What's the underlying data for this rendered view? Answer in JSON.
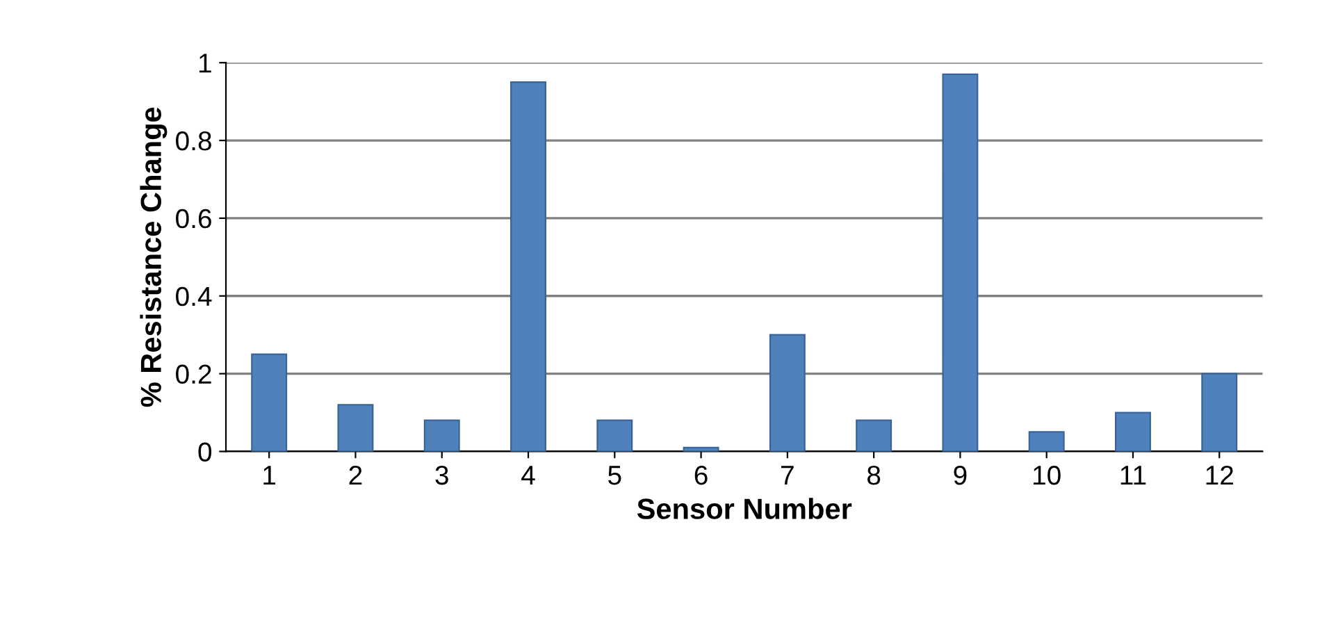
{
  "chart_data": {
    "type": "bar",
    "xlabel": "Sensor Number",
    "ylabel": "% Resistance Change",
    "categories": [
      "1",
      "2",
      "3",
      "4",
      "5",
      "6",
      "7",
      "8",
      "9",
      "10",
      "11",
      "12"
    ],
    "values": [
      0.25,
      0.12,
      0.08,
      0.95,
      0.08,
      0.01,
      0.3,
      0.08,
      0.97,
      0.05,
      0.1,
      0.2
    ],
    "color": "#4f81bd",
    "ylim": [
      0,
      1
    ],
    "yticks": [
      0,
      0.2,
      0.4,
      0.6,
      0.8,
      1
    ],
    "grid": "y",
    "legend": false
  }
}
